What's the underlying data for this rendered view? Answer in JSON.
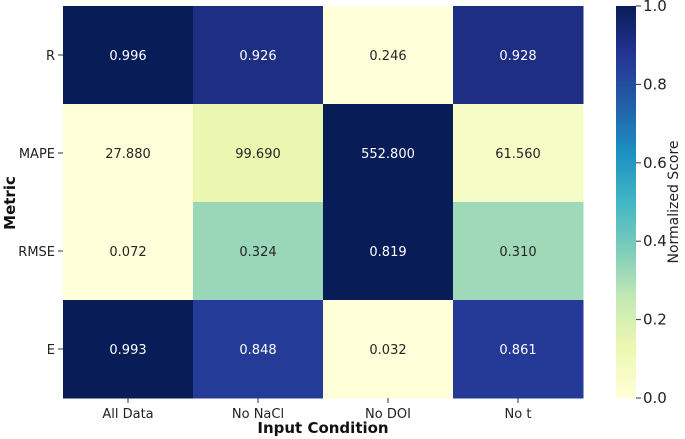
{
  "chart_data": {
    "type": "heatmap",
    "title": "",
    "xlabel": "Input Condition",
    "ylabel": "Metric",
    "x_categories": [
      "All Data",
      "No NaCl",
      "No DOI",
      "No t"
    ],
    "y_categories": [
      "R",
      "MAPE",
      "RMSE",
      "E"
    ],
    "cell_labels": [
      [
        "0.996",
        "0.926",
        "0.246",
        "0.928"
      ],
      [
        "27.880",
        "99.690",
        "552.800",
        "61.560"
      ],
      [
        "0.072",
        "0.324",
        "0.819",
        "0.310"
      ],
      [
        "0.993",
        "0.848",
        "0.032",
        "0.861"
      ]
    ],
    "normalized_values": [
      [
        1.0,
        0.91,
        0.0,
        0.91
      ],
      [
        0.0,
        0.13,
        1.0,
        0.06
      ],
      [
        0.0,
        0.33,
        1.0,
        0.32
      ],
      [
        1.0,
        0.85,
        0.0,
        0.86
      ]
    ],
    "colorbar": {
      "label": "Normalized Score",
      "range": [
        0.0,
        1.0
      ],
      "ticks": [
        "0.0",
        "0.2",
        "0.4",
        "0.6",
        "0.8",
        "1.0"
      ],
      "colormap": "YlGnBu"
    }
  }
}
